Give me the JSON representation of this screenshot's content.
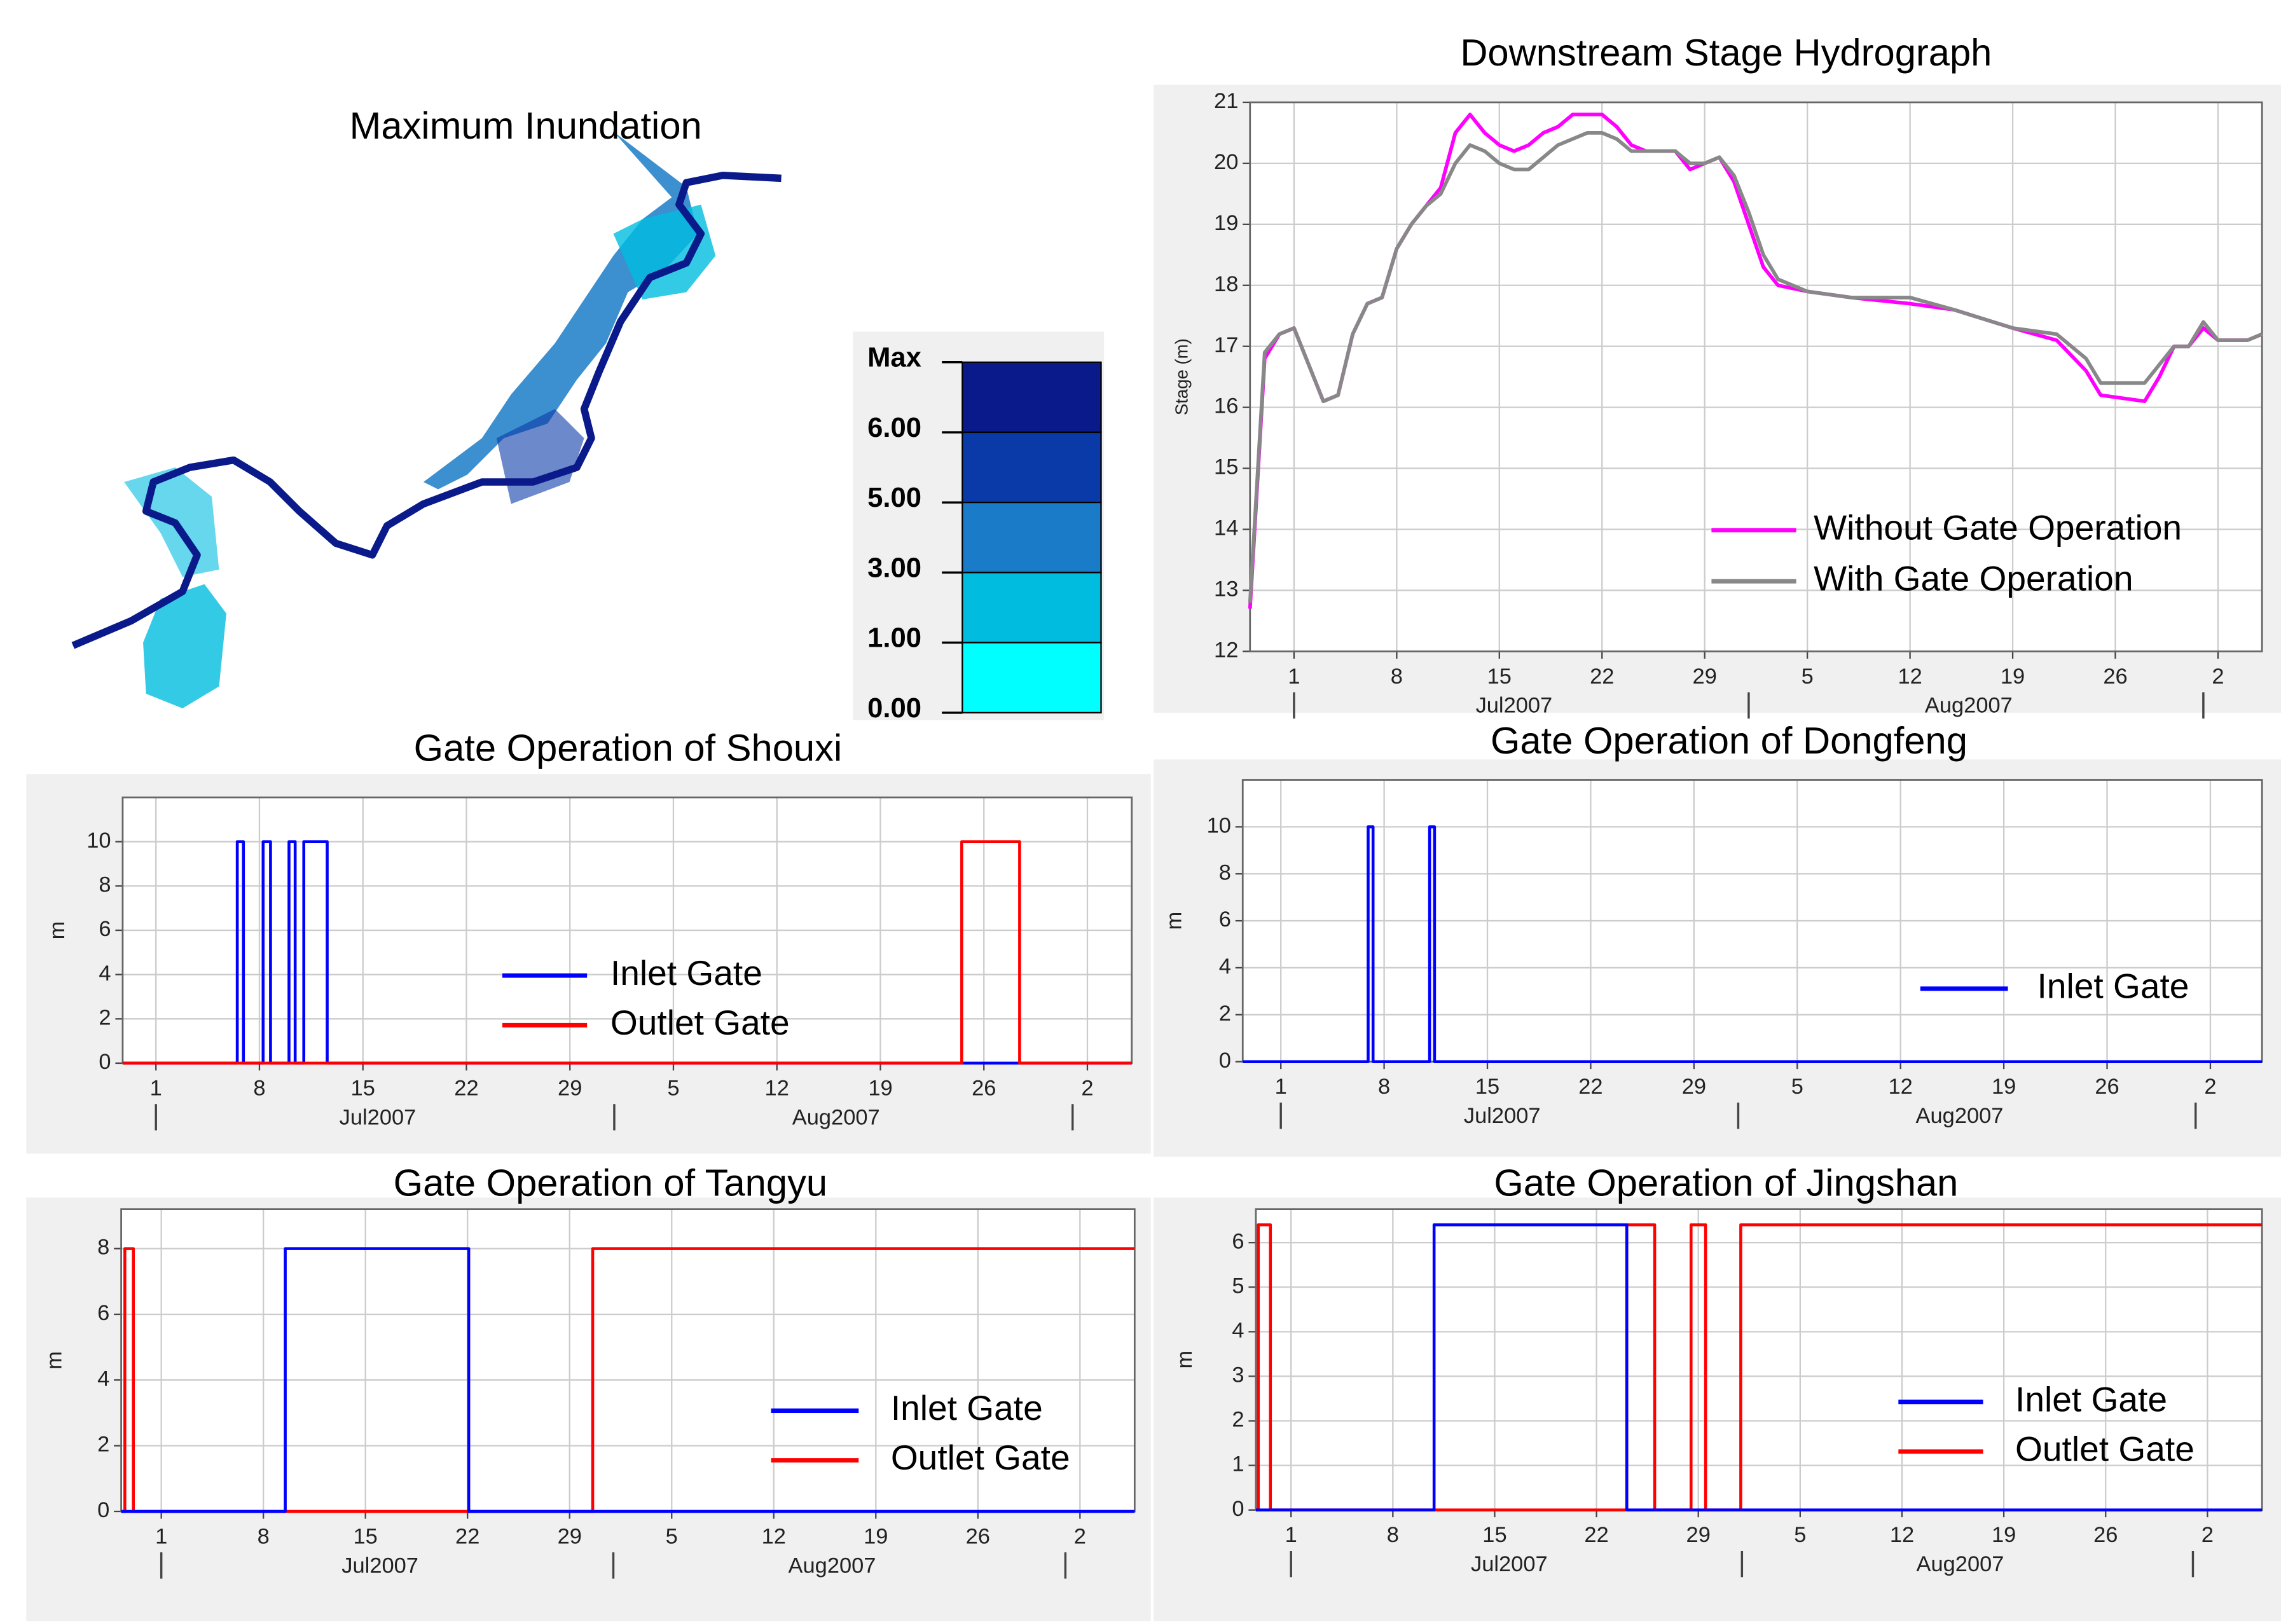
{
  "map": {
    "title": "Maximum Inundation",
    "legend_labels": [
      "Max",
      "6.00",
      "5.00",
      "3.00",
      "1.00",
      "0.00"
    ],
    "colors": [
      "#0a1a8a",
      "#0a3aa8",
      "#1a7cc8",
      "#00bde0",
      "#00ffff"
    ]
  },
  "chart_data": [
    {
      "type": "line",
      "title": "Downstream Stage Hydrograph",
      "y_label": "Stage (m)",
      "grid": true,
      "legend": "lower right",
      "xlim": [
        "2007-06-28",
        "2007-09-05"
      ],
      "ylim": [
        12,
        21
      ],
      "yticks": [
        12,
        13,
        14,
        15,
        16,
        17,
        18,
        19,
        20,
        21
      ],
      "xticks": [
        {
          "value": "2007-07-01",
          "label": "1"
        },
        {
          "value": "2007-07-08",
          "label": "8"
        },
        {
          "value": "2007-07-15",
          "label": "15"
        },
        {
          "value": "2007-07-22",
          "label": "22"
        },
        {
          "value": "2007-07-29",
          "label": "29"
        },
        {
          "value": "2007-08-05",
          "label": "5"
        },
        {
          "value": "2007-08-12",
          "label": "12"
        },
        {
          "value": "2007-08-19",
          "label": "19"
        },
        {
          "value": "2007-08-26",
          "label": "26"
        },
        {
          "value": "2007-09-02",
          "label": "2"
        }
      ],
      "month_bounds": [
        "2007-07-01",
        "2007-08-01",
        "2007-09-01"
      ],
      "month_labels": [
        {
          "value": "2007-07-16",
          "label": "Jul2007"
        },
        {
          "value": "2007-08-16",
          "label": "Aug2007"
        }
      ],
      "x": [
        "2007-06-28",
        "2007-06-29",
        "2007-06-30",
        "2007-07-01",
        "2007-07-02",
        "2007-07-03",
        "2007-07-04",
        "2007-07-05",
        "2007-07-06",
        "2007-07-07",
        "2007-07-08",
        "2007-07-09",
        "2007-07-10",
        "2007-07-11",
        "2007-07-12",
        "2007-07-13",
        "2007-07-14",
        "2007-07-15",
        "2007-07-16",
        "2007-07-17",
        "2007-07-18",
        "2007-07-19",
        "2007-07-20",
        "2007-07-21",
        "2007-07-22",
        "2007-07-23",
        "2007-07-24",
        "2007-07-25",
        "2007-07-26",
        "2007-07-27",
        "2007-07-28",
        "2007-07-29",
        "2007-07-30",
        "2007-07-31",
        "2007-08-01",
        "2007-08-02",
        "2007-08-03",
        "2007-08-05",
        "2007-08-08",
        "2007-08-12",
        "2007-08-15",
        "2007-08-19",
        "2007-08-22",
        "2007-08-24",
        "2007-08-25",
        "2007-08-28",
        "2007-08-29",
        "2007-08-30",
        "2007-08-31",
        "2007-09-01",
        "2007-09-02",
        "2007-09-04",
        "2007-09-05"
      ],
      "series": [
        {
          "name": "Without Gate Operation",
          "color": "#ff00ff",
          "values": [
            12.7,
            16.8,
            17.2,
            17.3,
            16.7,
            16.1,
            16.2,
            17.2,
            17.7,
            17.8,
            18.6,
            19.0,
            19.3,
            19.6,
            20.5,
            20.8,
            20.5,
            20.3,
            20.2,
            20.3,
            20.5,
            20.6,
            20.8,
            20.8,
            20.8,
            20.6,
            20.3,
            20.2,
            20.2,
            20.2,
            19.9,
            20.0,
            20.1,
            19.7,
            19.0,
            18.3,
            18.0,
            17.9,
            17.8,
            17.7,
            17.6,
            17.3,
            17.1,
            16.6,
            16.2,
            16.1,
            16.5,
            17.0,
            17.0,
            17.3,
            17.1,
            17.1,
            17.2
          ]
        },
        {
          "name": "With Gate Operation",
          "color": "#888888",
          "values": [
            12.8,
            16.9,
            17.2,
            17.3,
            16.7,
            16.1,
            16.2,
            17.2,
            17.7,
            17.8,
            18.6,
            19.0,
            19.3,
            19.5,
            20.0,
            20.3,
            20.2,
            20.0,
            19.9,
            19.9,
            20.1,
            20.3,
            20.4,
            20.5,
            20.5,
            20.4,
            20.2,
            20.2,
            20.2,
            20.2,
            20.0,
            20.0,
            20.1,
            19.8,
            19.2,
            18.5,
            18.1,
            17.9,
            17.8,
            17.8,
            17.6,
            17.3,
            17.2,
            16.8,
            16.4,
            16.4,
            16.7,
            17.0,
            17.0,
            17.4,
            17.1,
            17.1,
            17.2
          ]
        }
      ]
    },
    {
      "type": "step",
      "title": "Gate Operation of Shouxi",
      "y_label": "m",
      "grid": true,
      "legend": "center",
      "xlim": [
        "2007-06-28T18:00",
        "2007-09-05"
      ],
      "ylim": [
        0,
        12
      ],
      "yticks": [
        0,
        2,
        4,
        6,
        8,
        10
      ],
      "xticks": [
        {
          "value": "2007-07-01",
          "label": "1"
        },
        {
          "value": "2007-07-08",
          "label": "8"
        },
        {
          "value": "2007-07-15",
          "label": "15"
        },
        {
          "value": "2007-07-22",
          "label": "22"
        },
        {
          "value": "2007-07-29",
          "label": "29"
        },
        {
          "value": "2007-08-05",
          "label": "5"
        },
        {
          "value": "2007-08-12",
          "label": "12"
        },
        {
          "value": "2007-08-19",
          "label": "19"
        },
        {
          "value": "2007-08-26",
          "label": "26"
        },
        {
          "value": "2007-09-02",
          "label": "2"
        }
      ],
      "month_bounds": [
        "2007-07-01",
        "2007-08-01",
        "2007-09-01"
      ],
      "month_labels": [
        {
          "value": "2007-07-16",
          "label": "Jul2007"
        },
        {
          "value": "2007-08-16",
          "label": "Aug2007"
        }
      ],
      "series": [
        {
          "name": "Inlet Gate",
          "color": "#0000ff",
          "x": [
            "2007-06-28T18:00",
            "2007-07-06T12:00",
            "2007-07-06T12:00",
            "2007-07-06T22:00",
            "2007-07-06T22:00",
            "2007-07-08T06:00",
            "2007-07-08T06:00",
            "2007-07-08T18:00",
            "2007-07-08T18:00",
            "2007-07-10T00:00",
            "2007-07-10T00:00",
            "2007-07-10T10:00",
            "2007-07-10T10:00",
            "2007-07-11T00:00",
            "2007-07-11T00:00",
            "2007-07-12T14:00",
            "2007-07-12T14:00",
            "2007-09-05T00:00"
          ],
          "values": [
            0,
            0,
            10,
            10,
            0,
            0,
            10,
            10,
            0,
            0,
            10,
            10,
            0,
            0,
            10,
            10,
            0,
            0
          ]
        },
        {
          "name": "Outlet Gate",
          "color": "#ff0000",
          "x": [
            "2007-06-28T18:00",
            "2007-08-24T12:00",
            "2007-08-24T12:00",
            "2007-08-28T10:00",
            "2007-08-28T10:00",
            "2007-09-05T00:00"
          ],
          "values": [
            0,
            0,
            10,
            10,
            0,
            0
          ]
        }
      ]
    },
    {
      "type": "step",
      "title": "Gate Operation of Dongfeng",
      "y_label": "m",
      "grid": true,
      "legend": "center right",
      "xlim": [
        "2007-06-28T10:00",
        "2007-09-05T12:00"
      ],
      "ylim": [
        0,
        12
      ],
      "yticks": [
        0,
        2,
        4,
        6,
        8,
        10
      ],
      "xticks": [
        {
          "value": "2007-07-01",
          "label": "1"
        },
        {
          "value": "2007-07-08",
          "label": "8"
        },
        {
          "value": "2007-07-15",
          "label": "15"
        },
        {
          "value": "2007-07-22",
          "label": "22"
        },
        {
          "value": "2007-07-29",
          "label": "29"
        },
        {
          "value": "2007-08-05",
          "label": "5"
        },
        {
          "value": "2007-08-12",
          "label": "12"
        },
        {
          "value": "2007-08-19",
          "label": "19"
        },
        {
          "value": "2007-08-26",
          "label": "26"
        },
        {
          "value": "2007-09-02",
          "label": "2"
        }
      ],
      "month_bounds": [
        "2007-07-01",
        "2007-08-01",
        "2007-09-01"
      ],
      "month_labels": [
        {
          "value": "2007-07-16",
          "label": "Jul2007"
        },
        {
          "value": "2007-08-16",
          "label": "Aug2007"
        }
      ],
      "series": [
        {
          "name": "Inlet Gate",
          "color": "#0000ff",
          "x": [
            "2007-06-28T10:00",
            "2007-07-06T22:00",
            "2007-07-06T22:00",
            "2007-07-07T06:00",
            "2007-07-07T06:00",
            "2007-07-11T02:00",
            "2007-07-11T02:00",
            "2007-07-11T10:00",
            "2007-07-11T10:00",
            "2007-09-05T12:00"
          ],
          "values": [
            0,
            0,
            10,
            10,
            0,
            0,
            10,
            10,
            0,
            0
          ]
        }
      ]
    },
    {
      "type": "step",
      "title": "Gate Operation of Tangyu",
      "y_label": "m",
      "grid": true,
      "legend": "lower right",
      "xlim": [
        "2007-06-28T06:00",
        "2007-09-05T18:00"
      ],
      "ylim": [
        0,
        9.2
      ],
      "yticks": [
        0,
        2,
        4,
        6,
        8
      ],
      "xticks": [
        {
          "value": "2007-07-01",
          "label": "1"
        },
        {
          "value": "2007-07-08",
          "label": "8"
        },
        {
          "value": "2007-07-15",
          "label": "15"
        },
        {
          "value": "2007-07-22",
          "label": "22"
        },
        {
          "value": "2007-07-29",
          "label": "29"
        },
        {
          "value": "2007-08-05",
          "label": "5"
        },
        {
          "value": "2007-08-12",
          "label": "12"
        },
        {
          "value": "2007-08-19",
          "label": "19"
        },
        {
          "value": "2007-08-26",
          "label": "26"
        },
        {
          "value": "2007-09-02",
          "label": "2"
        }
      ],
      "month_bounds": [
        "2007-07-01",
        "2007-08-01",
        "2007-09-01"
      ],
      "month_labels": [
        {
          "value": "2007-07-16",
          "label": "Jul2007"
        },
        {
          "value": "2007-08-16",
          "label": "Aug2007"
        }
      ],
      "series": [
        {
          "name": "Outlet Gate",
          "color": "#ff0000",
          "x": [
            "2007-06-28T06:00",
            "2007-06-28T12:00",
            "2007-06-28T12:00",
            "2007-06-29T02:00",
            "2007-06-29T02:00",
            "2007-07-30T14:00",
            "2007-07-30T14:00",
            "2007-09-05T18:00"
          ],
          "values": [
            0,
            0,
            8,
            8,
            0,
            0,
            8,
            8
          ]
        },
        {
          "name": "Inlet Gate",
          "color": "#0000ff",
          "x": [
            "2007-06-28T06:00",
            "2007-07-09T12:00",
            "2007-07-09T12:00",
            "2007-07-22T02:00",
            "2007-07-22T02:00",
            "2007-09-05T18:00"
          ],
          "values": [
            0,
            0,
            8,
            8,
            0,
            0
          ]
        }
      ]
    },
    {
      "type": "step",
      "title": "Gate Operation of Jingshan",
      "y_label": "m",
      "grid": true,
      "legend": "lower right",
      "xlim": [
        "2007-06-28T14:00",
        "2007-09-05T18:00"
      ],
      "ylim": [
        0,
        6.75
      ],
      "yticks": [
        0,
        1,
        2,
        3,
        4,
        5,
        6
      ],
      "xticks": [
        {
          "value": "2007-07-01",
          "label": "1"
        },
        {
          "value": "2007-07-08",
          "label": "8"
        },
        {
          "value": "2007-07-15",
          "label": "15"
        },
        {
          "value": "2007-07-22",
          "label": "22"
        },
        {
          "value": "2007-07-29",
          "label": "29"
        },
        {
          "value": "2007-08-05",
          "label": "5"
        },
        {
          "value": "2007-08-12",
          "label": "12"
        },
        {
          "value": "2007-08-19",
          "label": "19"
        },
        {
          "value": "2007-08-26",
          "label": "26"
        },
        {
          "value": "2007-09-02",
          "label": "2"
        }
      ],
      "month_bounds": [
        "2007-07-01",
        "2007-08-01",
        "2007-09-01"
      ],
      "month_labels": [
        {
          "value": "2007-07-16",
          "label": "Jul2007"
        },
        {
          "value": "2007-08-16",
          "label": "Aug2007"
        }
      ],
      "series": [
        {
          "name": "Outlet Gate",
          "color": "#ff0000",
          "x": [
            "2007-06-28T14:00",
            "2007-06-28T18:00",
            "2007-06-28T18:00",
            "2007-06-29T14:00",
            "2007-06-29T14:00",
            "2007-07-24T02:00",
            "2007-07-24T02:00",
            "2007-07-26T00:00",
            "2007-07-26T00:00",
            "2007-07-28T12:00",
            "2007-07-28T12:00",
            "2007-07-29T12:00",
            "2007-07-29T12:00",
            "2007-07-31T22:00",
            "2007-07-31T22:00",
            "2007-09-05T18:00"
          ],
          "values": [
            0,
            0,
            6.4,
            6.4,
            0,
            0,
            6.4,
            6.4,
            0,
            0,
            6.4,
            6.4,
            0,
            0,
            6.4,
            6.4
          ]
        },
        {
          "name": "Inlet Gate",
          "color": "#0000ff",
          "x": [
            "2007-06-28T14:00",
            "2007-07-10T20:00",
            "2007-07-10T20:00",
            "2007-07-24T02:00",
            "2007-07-24T02:00",
            "2007-09-05T18:00"
          ],
          "values": [
            0,
            0,
            6.4,
            6.4,
            0,
            0
          ]
        }
      ]
    }
  ]
}
